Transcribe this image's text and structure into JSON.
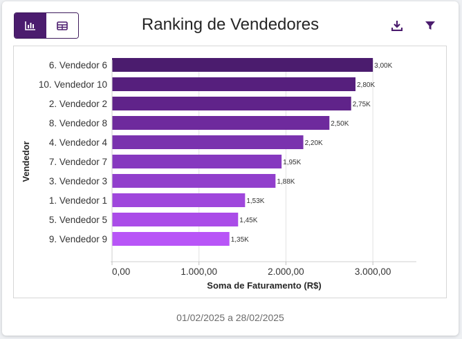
{
  "toolbar": {
    "chart_view_icon": "bar-chart-icon",
    "table_view_icon": "table-icon",
    "download_icon": "download-icon",
    "filter_icon": "filter-icon",
    "accent_color": "#4b1c6e"
  },
  "footer": {
    "date_range": "01/02/2025 a 28/02/2025"
  },
  "chart_data": {
    "type": "bar",
    "orientation": "horizontal",
    "title": "Ranking de Vendedores",
    "xlabel": "Soma de Faturamento (R$)",
    "ylabel": "Vendedor",
    "xlim": [
      0,
      3500
    ],
    "x_ticks": [
      0,
      1000,
      2000,
      3000
    ],
    "x_tick_labels": [
      "0,00",
      "1.000,00",
      "2.000,00",
      "3.000,00"
    ],
    "grid": true,
    "categories": [
      "6. Vendedor 6",
      "10. Vendedor 10",
      "2. Vendedor 2",
      "8. Vendedor 8",
      "4. Vendedor 4",
      "7. Vendedor 7",
      "3. Vendedor 3",
      "1. Vendedor 1",
      "5. Vendedor 5",
      "9. Vendedor 9"
    ],
    "values": [
      3000,
      2800,
      2750,
      2500,
      2200,
      1950,
      1880,
      1530,
      1450,
      1350
    ],
    "value_labels": [
      "3,00K",
      "2,80K",
      "2,75K",
      "2,50K",
      "2,20K",
      "1,95K",
      "1,88K",
      "1,53K",
      "1,45K",
      "1,35K"
    ],
    "colors": [
      "#4b1c6e",
      "#561f7d",
      "#60238a",
      "#6e2a9d",
      "#7a32ae",
      "#8639bf",
      "#913fcc",
      "#9f47dc",
      "#aa4ce8",
      "#b855f7"
    ]
  }
}
